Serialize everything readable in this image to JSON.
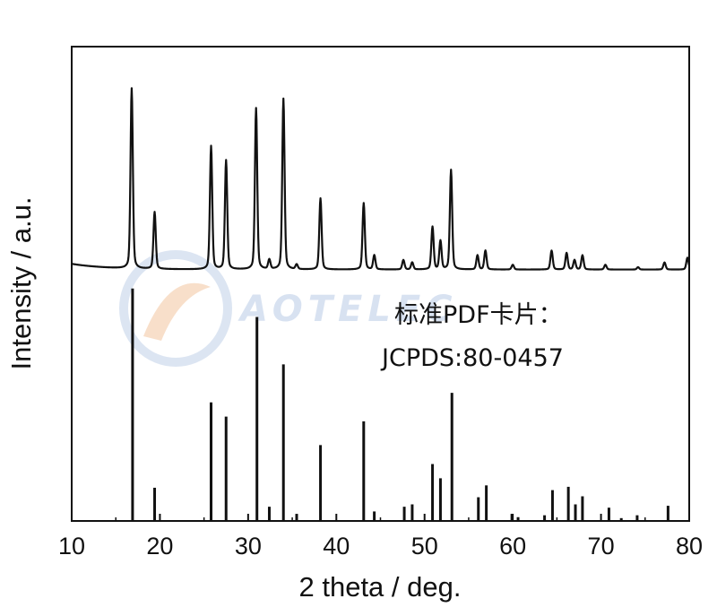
{
  "chart_data": {
    "type": "line",
    "title": "",
    "xlabel": "2 theta / deg.",
    "ylabel": "Intensity / a.u.",
    "xlim": [
      10,
      80
    ],
    "ylim": [
      0,
      1
    ],
    "xticks": [
      "10",
      "20",
      "30",
      "40",
      "50",
      "60",
      "70",
      "80"
    ],
    "grid": false,
    "legend": "none",
    "annotations": [
      "标准PDF卡片：",
      "JCPDS:80-0457"
    ],
    "watermark": "AOTELEC",
    "series": [
      {
        "kind": "measured-pattern",
        "baseline": 0.53,
        "peaks": [
          [
            16.8,
            0.38
          ],
          [
            19.4,
            0.12
          ],
          [
            25.8,
            0.26
          ],
          [
            27.5,
            0.23
          ],
          [
            30.9,
            0.34
          ],
          [
            32.4,
            0.02
          ],
          [
            34.0,
            0.36
          ],
          [
            35.5,
            0.01
          ],
          [
            38.2,
            0.15
          ],
          [
            43.1,
            0.14
          ],
          [
            44.3,
            0.03
          ],
          [
            47.6,
            0.02
          ],
          [
            48.6,
            0.015
          ],
          [
            50.9,
            0.09
          ],
          [
            51.8,
            0.06
          ],
          [
            53.0,
            0.21
          ],
          [
            56.0,
            0.03
          ],
          [
            56.9,
            0.04
          ],
          [
            60.0,
            0.01
          ],
          [
            64.4,
            0.04
          ],
          [
            66.1,
            0.035
          ],
          [
            67.0,
            0.02
          ],
          [
            67.9,
            0.03
          ],
          [
            70.5,
            0.01
          ],
          [
            74.2,
            0.005
          ],
          [
            77.2,
            0.015
          ],
          [
            79.8,
            0.025
          ]
        ]
      },
      {
        "kind": "reference-sticks",
        "baseline": 0.0,
        "sticks": [
          [
            16.9,
            0.49
          ],
          [
            19.4,
            0.07
          ],
          [
            25.8,
            0.25
          ],
          [
            27.5,
            0.22
          ],
          [
            31.0,
            0.43
          ],
          [
            32.4,
            0.03
          ],
          [
            34.0,
            0.33
          ],
          [
            35.5,
            0.015
          ],
          [
            38.2,
            0.16
          ],
          [
            43.1,
            0.21
          ],
          [
            44.3,
            0.02
          ],
          [
            47.7,
            0.03
          ],
          [
            48.6,
            0.035
          ],
          [
            50.9,
            0.12
          ],
          [
            51.8,
            0.09
          ],
          [
            53.1,
            0.27
          ],
          [
            56.1,
            0.05
          ],
          [
            57.0,
            0.075
          ],
          [
            59.9,
            0.015
          ],
          [
            60.6,
            0.008
          ],
          [
            63.6,
            0.012
          ],
          [
            64.5,
            0.065
          ],
          [
            66.3,
            0.072
          ],
          [
            67.1,
            0.035
          ],
          [
            67.9,
            0.052
          ],
          [
            70.9,
            0.028
          ],
          [
            72.3,
            0.006
          ],
          [
            74.1,
            0.012
          ],
          [
            77.6,
            0.032
          ]
        ]
      }
    ]
  }
}
